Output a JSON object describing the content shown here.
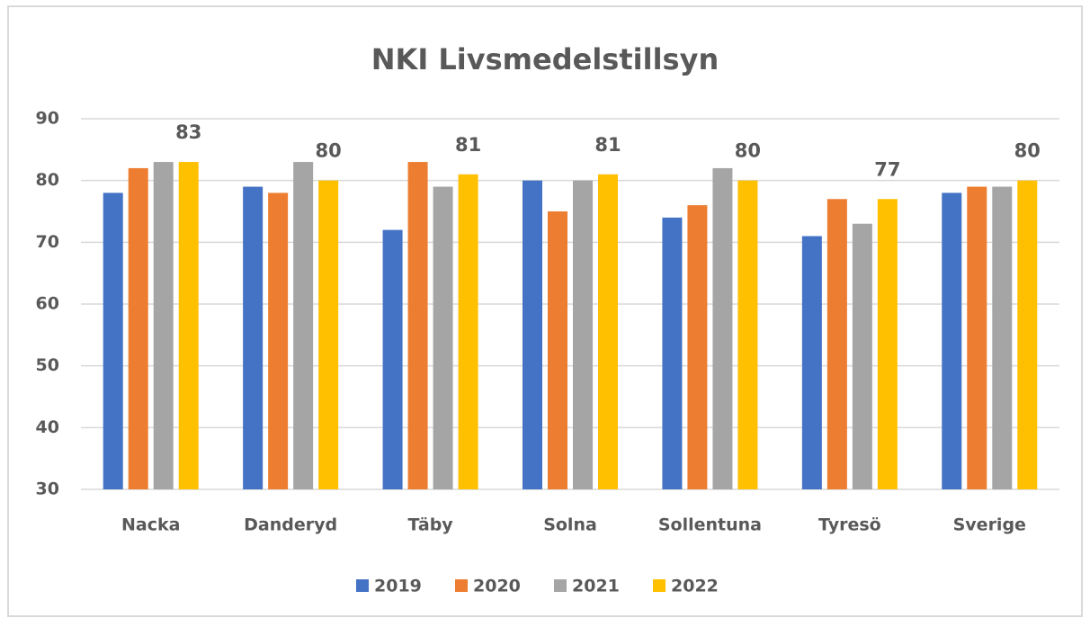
{
  "chart_data": {
    "type": "bar",
    "title": "NKI Livsmedelstillsyn",
    "categories": [
      "Nacka",
      "Danderyd",
      "Täby",
      "Solna",
      "Sollentuna",
      "Tyresö",
      "Sverige"
    ],
    "series": [
      {
        "name": "2019",
        "color": "#4472c4",
        "values": [
          78,
          79,
          72,
          80,
          74,
          71,
          78
        ]
      },
      {
        "name": "2020",
        "color": "#ed7d31",
        "values": [
          82,
          78,
          83,
          75,
          76,
          77,
          79
        ]
      },
      {
        "name": "2021",
        "color": "#a5a5a5",
        "values": [
          83,
          83,
          79,
          80,
          82,
          73,
          79
        ]
      },
      {
        "name": "2022",
        "color": "#ffc000",
        "values": [
          83,
          80,
          81,
          81,
          80,
          77,
          80
        ],
        "show_labels": true
      }
    ],
    "ylim": [
      30,
      90
    ],
    "yticks": [
      30,
      40,
      50,
      60,
      70,
      80,
      90
    ],
    "grid": true,
    "legend": "bottom"
  }
}
